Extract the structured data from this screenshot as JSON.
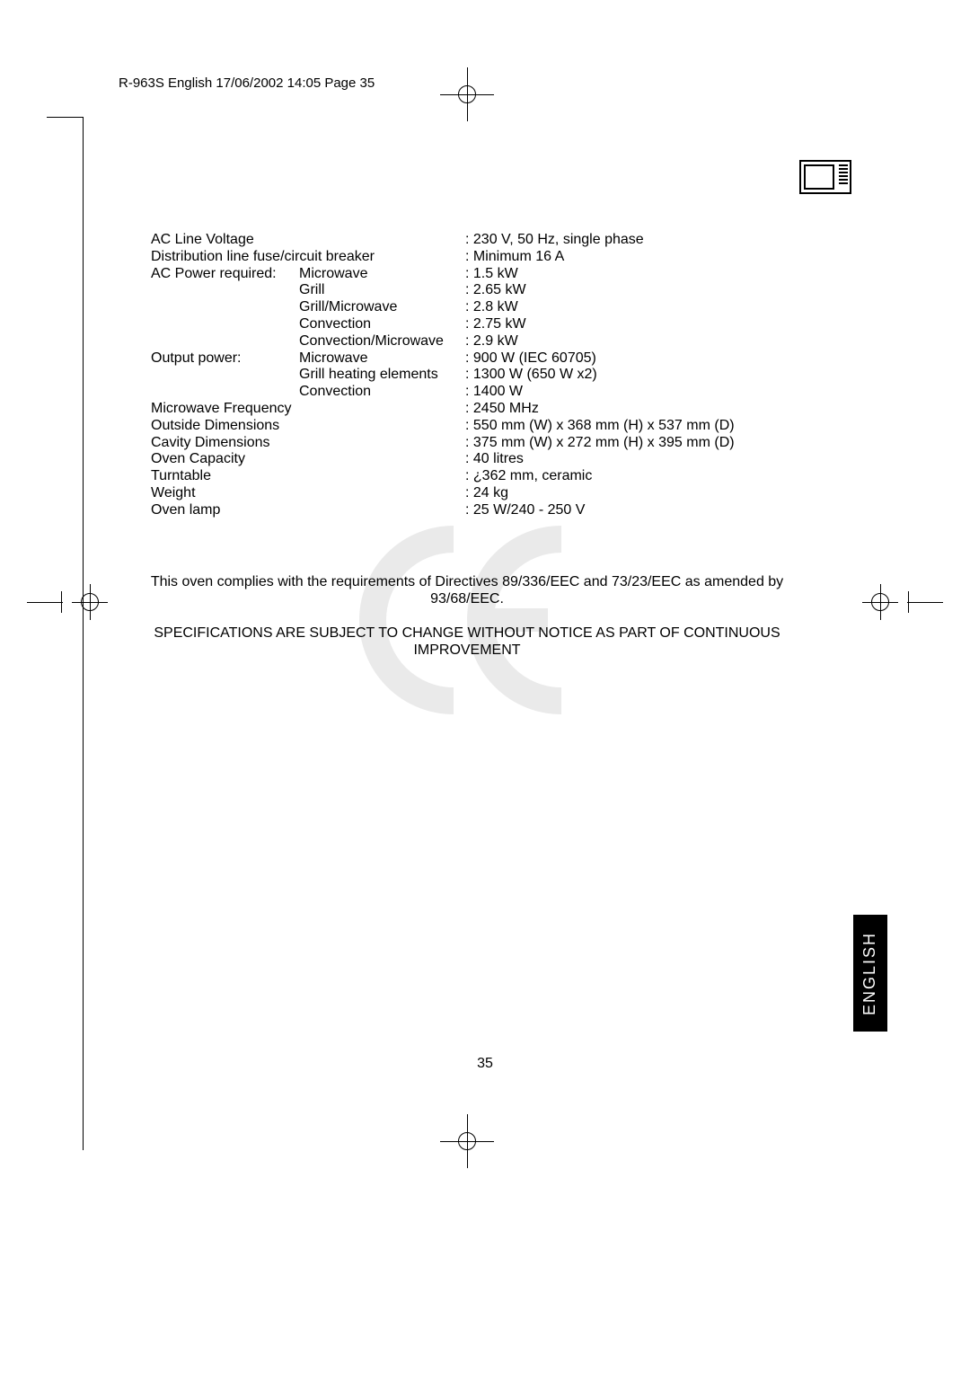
{
  "header": "R-963S English  17/06/2002  14:05  Page 35",
  "page_number": "35",
  "language_tab": "ENGLISH",
  "specs": [
    {
      "c1": "AC Line Voltage",
      "c2": "",
      "c3": ": 230 V, 50 Hz, single phase",
      "wide": true
    },
    {
      "c1": "Distribution line fuse/circuit breaker",
      "c2": "",
      "c3": ": Minimum 16 A",
      "wide": true
    },
    {
      "c1": "AC Power required:",
      "c2": "Microwave",
      "c3": ": 1.5 kW"
    },
    {
      "c1": "",
      "c2": "Grill",
      "c3": ": 2.65 kW"
    },
    {
      "c1": "",
      "c2": "Grill/Microwave",
      "c3": ": 2.8 kW"
    },
    {
      "c1": "",
      "c2": "Convection",
      "c3": ": 2.75 kW"
    },
    {
      "c1": "",
      "c2": "Convection/Microwave",
      "c3": ": 2.9 kW"
    },
    {
      "c1": "Output power:",
      "c2": "Microwave",
      "c3": ": 900 W (IEC 60705)"
    },
    {
      "c1": "",
      "c2": "Grill heating elements",
      "c3": ": 1300 W (650 W x2)"
    },
    {
      "c1": "",
      "c2": "Convection",
      "c3": ": 1400 W"
    },
    {
      "c1": "Microwave Frequency",
      "c2": "",
      "c3": ": 2450 MHz",
      "wide": true
    },
    {
      "c1": "Outside Dimensions",
      "c2": "",
      "c3": ": 550 mm (W) x 368 mm (H) x 537 mm (D)",
      "wide": true
    },
    {
      "c1": "Cavity Dimensions",
      "c2": "",
      "c3": ": 375 mm (W) x 272 mm (H) x 395 mm (D)",
      "wide": true
    },
    {
      "c1": "Oven Capacity",
      "c2": "",
      "c3": ": 40 litres",
      "wide": true
    },
    {
      "c1": "Turntable",
      "c2": "",
      "c3": ": ¿362 mm, ceramic",
      "wide": true
    },
    {
      "c1": "Weight",
      "c2": "",
      "c3": ": 24 kg",
      "wide": true
    },
    {
      "c1": "Oven lamp",
      "c2": "",
      "c3": ": 25 W/240 - 250 V",
      "wide": true
    }
  ],
  "compliance": {
    "p1": "This oven complies with the requirements of Directives 89/336/EEC and 73/23/EEC as amended by 93/68/EEC.",
    "p2": "SPECIFICATIONS ARE SUBJECT TO CHANGE WITHOUT NOTICE AS PART OF CONTINUOUS IMPROVEMENT"
  }
}
